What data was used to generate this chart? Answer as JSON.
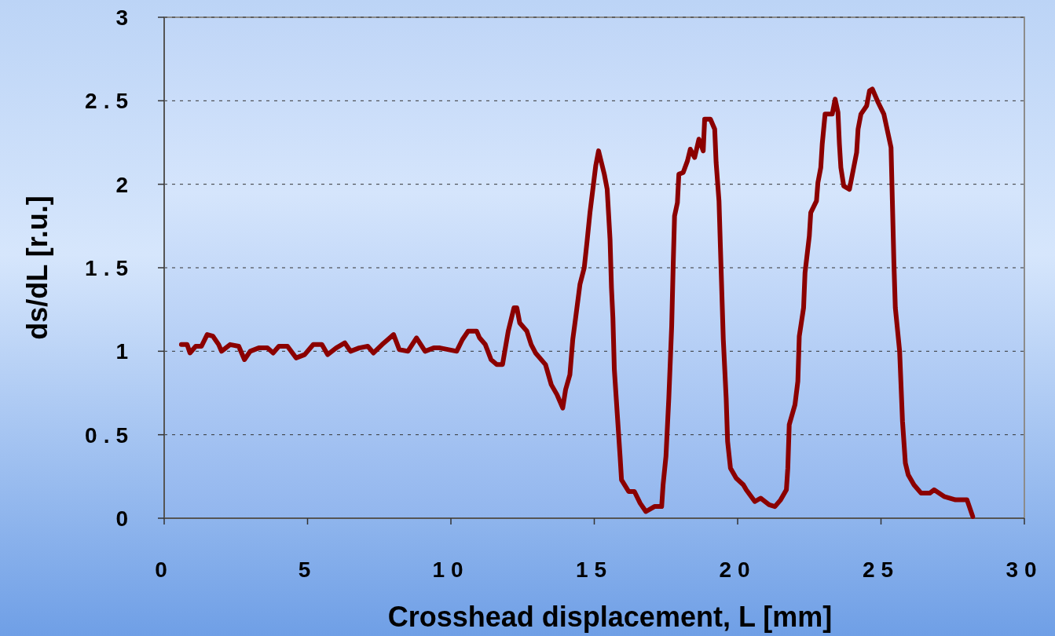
{
  "chart_data": {
    "type": "line",
    "xlabel": "Crosshead displacement, L [mm]",
    "ylabel": "ds/dL [r.u.]",
    "xlim": [
      0,
      30
    ],
    "xticks": [
      0,
      5,
      10,
      15,
      20,
      25,
      30
    ],
    "ylim": [
      0,
      3
    ],
    "yticks": [
      0,
      {
        "value": 0.5,
        "label": "0.5"
      },
      1,
      {
        "value": 1.5,
        "label": "1.5"
      },
      2,
      {
        "value": 2.5,
        "label": "2.5"
      },
      3
    ],
    "grid": "y",
    "marker": "none",
    "line_style": "solid",
    "series": [
      {
        "color": "#8b0000",
        "x": [
          0.6,
          0.8,
          0.9,
          1.1,
          1.3,
          1.5,
          1.7,
          1.9,
          2.0,
          2.3,
          2.6,
          2.8,
          3.0,
          3.3,
          3.6,
          3.8,
          4.0,
          4.3,
          4.6,
          4.9,
          5.2,
          5.5,
          5.7,
          6.0,
          6.3,
          6.5,
          6.8,
          7.1,
          7.3,
          7.6,
          7.8,
          8.0,
          8.2,
          8.5,
          8.8,
          9.1,
          9.4,
          9.62,
          10.2,
          10.4,
          10.6,
          10.9,
          11.0,
          11.2,
          11.4,
          11.6,
          11.8,
          12.0,
          12.2,
          12.3,
          12.4,
          12.65,
          12.8,
          12.95,
          13.3,
          13.5,
          13.7,
          13.9,
          14.0,
          14.15,
          14.25,
          14.35,
          14.5,
          14.65,
          14.75,
          14.85,
          14.95,
          15.05,
          15.15,
          15.35,
          15.45,
          15.55,
          15.6,
          15.65,
          15.7,
          15.8,
          15.9,
          15.95,
          16.2,
          16.4,
          16.6,
          16.8,
          17.1,
          17.35,
          17.4,
          17.5,
          17.6,
          17.7,
          17.75,
          17.8,
          17.9,
          17.95,
          18.1,
          18.25,
          18.35,
          18.5,
          18.65,
          18.8,
          18.85,
          19.05,
          19.2,
          19.25,
          19.35,
          19.4,
          19.5,
          19.6,
          19.65,
          19.75,
          19.95,
          20.2,
          20.3,
          20.6,
          20.8,
          21.1,
          21.3,
          21.5,
          21.7,
          21.75,
          21.8,
          22.0,
          22.1,
          22.15,
          22.3,
          22.35,
          22.5,
          22.55,
          22.75,
          22.8,
          22.9,
          22.95,
          23.05,
          23.3,
          23.4,
          23.5,
          23.55,
          23.6,
          23.7,
          23.9,
          24.15,
          24.2,
          24.3,
          24.5,
          24.6,
          24.7,
          24.9,
          25.1,
          25.35,
          25.45,
          25.5,
          25.65,
          25.75,
          25.85,
          25.95,
          26.15,
          26.4,
          26.7,
          26.85,
          27.2,
          27.6,
          28.0,
          28.2
        ],
        "values": [
          1.04,
          1.04,
          0.99,
          1.03,
          1.03,
          1.1,
          1.09,
          1.04,
          1.0,
          1.04,
          1.03,
          0.95,
          1.0,
          1.02,
          1.02,
          0.99,
          1.03,
          1.03,
          0.96,
          0.98,
          1.04,
          1.04,
          0.98,
          1.02,
          1.05,
          1.0,
          1.02,
          1.03,
          0.99,
          1.04,
          1.07,
          1.1,
          1.01,
          1.0,
          1.08,
          1.0,
          1.02,
          1.02,
          1.0,
          1.07,
          1.12,
          1.12,
          1.08,
          1.04,
          0.95,
          0.92,
          0.92,
          1.12,
          1.26,
          1.26,
          1.17,
          1.12,
          1.04,
          0.99,
          0.92,
          0.8,
          0.74,
          0.66,
          0.77,
          0.86,
          1.07,
          1.2,
          1.4,
          1.5,
          1.66,
          1.83,
          1.97,
          2.11,
          2.2,
          2.06,
          1.97,
          1.67,
          1.38,
          1.2,
          0.89,
          0.63,
          0.37,
          0.23,
          0.16,
          0.16,
          0.09,
          0.04,
          0.07,
          0.07,
          0.2,
          0.37,
          0.72,
          1.15,
          1.5,
          1.81,
          1.89,
          2.06,
          2.07,
          2.14,
          2.21,
          2.16,
          2.27,
          2.2,
          2.39,
          2.39,
          2.33,
          2.13,
          1.9,
          1.62,
          1.07,
          0.72,
          0.46,
          0.3,
          0.24,
          0.2,
          0.17,
          0.1,
          0.12,
          0.08,
          0.07,
          0.11,
          0.17,
          0.3,
          0.56,
          0.68,
          0.82,
          1.09,
          1.26,
          1.47,
          1.69,
          1.83,
          1.9,
          2.01,
          2.1,
          2.24,
          2.42,
          2.42,
          2.51,
          2.43,
          2.24,
          2.1,
          1.99,
          1.97,
          2.19,
          2.33,
          2.42,
          2.47,
          2.56,
          2.57,
          2.49,
          2.42,
          2.22,
          1.53,
          1.26,
          1.0,
          0.58,
          0.33,
          0.26,
          0.2,
          0.15,
          0.15,
          0.17,
          0.13,
          0.11,
          0.11,
          0.01
        ]
      }
    ]
  }
}
